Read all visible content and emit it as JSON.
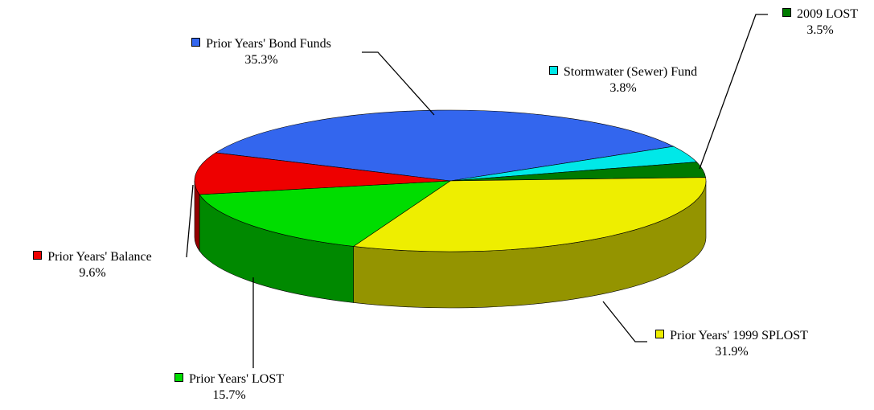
{
  "chart_data": {
    "type": "pie3d",
    "labels": [
      "Prior Years' Bond Funds",
      "Stormwater (Sewer) Fund",
      "2009 LOST",
      "Prior Years' 1999 SPLOST",
      "Prior Years' LOST",
      "Prior Years' Balance"
    ],
    "values": [
      35.3,
      3.8,
      3.5,
      31.9,
      15.7,
      9.6
    ],
    "value_labels": [
      "35.3%",
      "3.8%",
      "3.5%",
      "31.9%",
      "15.7%",
      "9.6%"
    ],
    "colors": [
      "#3366ee",
      "#00e8e8",
      "#007a00",
      "#eeee00",
      "#00dd00",
      "#ee0000"
    ]
  }
}
